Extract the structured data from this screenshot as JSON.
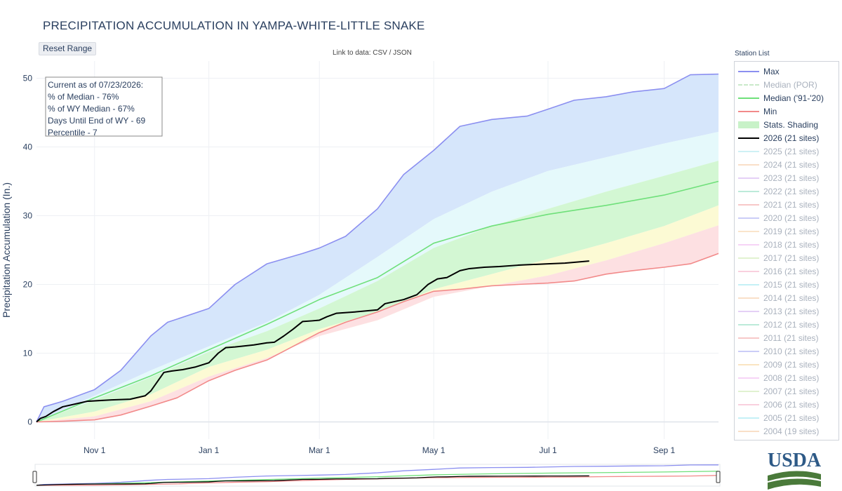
{
  "header": {
    "title": "PRECIPITATION ACCUMULATION IN YAMPA-WHITE-LITTLE SNAKE",
    "reset_label": "Reset Range",
    "link_prefix": "Link to data:",
    "link_csv": "CSV",
    "link_sep": "/",
    "link_json": "JSON"
  },
  "info_box": {
    "lines": [
      "Current as of 07/23/2026:",
      "% of Median - 76%",
      "% of WY Median - 67%",
      "Days Until End of WY - 69",
      "Percentile - 7"
    ]
  },
  "legend": {
    "title": "Station List",
    "items": [
      {
        "label": "Max",
        "color": "#8b8ff0",
        "style": "line",
        "active": true
      },
      {
        "label": "Median (POR)",
        "color": "#a6dca6",
        "style": "dash",
        "active": false
      },
      {
        "label": "Median ('91-'20)",
        "color": "#6fe07a",
        "style": "line",
        "active": true
      },
      {
        "label": "Min",
        "color": "#f28a8a",
        "style": "line",
        "active": true
      },
      {
        "label": "Stats. Shading",
        "color": "#c8f2c8",
        "style": "block",
        "active": true
      },
      {
        "label": "2026 (21 sites)",
        "color": "#000000",
        "style": "line",
        "active": true
      },
      {
        "label": "2025 (21 sites)",
        "color": "#aee8ee",
        "style": "line",
        "active": false
      },
      {
        "label": "2024 (21 sites)",
        "color": "#f5c9a3",
        "style": "line",
        "active": false
      },
      {
        "label": "2023 (21 sites)",
        "color": "#d4b0f0",
        "style": "line",
        "active": false
      },
      {
        "label": "2022 (21 sites)",
        "color": "#8fdcc0",
        "style": "line",
        "active": false
      },
      {
        "label": "2021 (21 sites)",
        "color": "#f2a3a3",
        "style": "line",
        "active": false
      },
      {
        "label": "2020 (21 sites)",
        "color": "#a9acf2",
        "style": "line",
        "active": false
      },
      {
        "label": "2019 (21 sites)",
        "color": "#f7d3a9",
        "style": "line",
        "active": false
      },
      {
        "label": "2018 (21 sites)",
        "color": "#f0b8f0",
        "style": "line",
        "active": false
      },
      {
        "label": "2017 (21 sites)",
        "color": "#cdeab0",
        "style": "line",
        "active": false
      },
      {
        "label": "2016 (21 sites)",
        "color": "#f5b0c8",
        "style": "line",
        "active": false
      },
      {
        "label": "2015 (21 sites)",
        "color": "#9fe6f0",
        "style": "line",
        "active": false
      },
      {
        "label": "2014 (21 sites)",
        "color": "#f5c9a3",
        "style": "line",
        "active": false
      },
      {
        "label": "2013 (21 sites)",
        "color": "#d4b0f0",
        "style": "line",
        "active": false
      },
      {
        "label": "2012 (21 sites)",
        "color": "#8fdcc0",
        "style": "line",
        "active": false
      },
      {
        "label": "2011 (21 sites)",
        "color": "#f2a3a3",
        "style": "line",
        "active": false
      },
      {
        "label": "2010 (21 sites)",
        "color": "#a9acf2",
        "style": "line",
        "active": false
      },
      {
        "label": "2009 (21 sites)",
        "color": "#f7d39a",
        "style": "line",
        "active": false
      },
      {
        "label": "2008 (21 sites)",
        "color": "#f0b8f0",
        "style": "line",
        "active": false
      },
      {
        "label": "2007 (21 sites)",
        "color": "#cdeab0",
        "style": "line",
        "active": false
      },
      {
        "label": "2006 (21 sites)",
        "color": "#f5b0c8",
        "style": "line",
        "active": false
      },
      {
        "label": "2005 (21 sites)",
        "color": "#9fe6f0",
        "style": "line",
        "active": false
      },
      {
        "label": "2004 (19 sites)",
        "color": "#f5c9a3",
        "style": "line",
        "active": false
      }
    ]
  },
  "logo_text": "USDA",
  "chart_data": {
    "type": "area",
    "x_unit": "date",
    "xlim": [
      "2025-10-01",
      "2026-09-30"
    ],
    "x_ticks": [
      {
        "date": "2025-11-01",
        "label": "Nov 1"
      },
      {
        "date": "2026-01-01",
        "label": "Jan 1"
      },
      {
        "date": "2026-03-01",
        "label": "Mar 1"
      },
      {
        "date": "2026-05-01",
        "label": "May 1"
      },
      {
        "date": "2026-07-01",
        "label": "Jul 1"
      },
      {
        "date": "2026-09-01",
        "label": "Sep 1"
      }
    ],
    "ylabel": "Precipitation Accumulation (In.)",
    "ylim": [
      -2.5,
      52.5
    ],
    "y_ticks": [
      0,
      10,
      20,
      30,
      40,
      50
    ],
    "grid": true,
    "legend_position": "right",
    "colors": {
      "max_line": "#8b8ff0",
      "median_line": "#6fe07a",
      "min_line": "#f28a8a",
      "current_line": "#000000",
      "band_top": "#d6e6fb",
      "band_upper": "#e5f9fb",
      "band_mid": "#d3f7d3",
      "band_lower": "#fcfad4",
      "band_bottom": "#fde0e2"
    },
    "bands_x": [
      "2025-10-01",
      "2025-11-01",
      "2025-12-01",
      "2026-01-01",
      "2026-02-01",
      "2026-03-01",
      "2026-04-01",
      "2026-05-01",
      "2026-06-01",
      "2026-07-01",
      "2026-08-01",
      "2026-09-01",
      "2026-09-30"
    ],
    "bands": {
      "p90": [
        0,
        3.8,
        7.5,
        11.0,
        14.5,
        18.5,
        24.0,
        29.5,
        33.5,
        36.5,
        38.5,
        40.5,
        42.2
      ],
      "p70": [
        0,
        3.2,
        6.5,
        10.2,
        13.2,
        16.5,
        20.5,
        25.3,
        28.5,
        31.0,
        33.5,
        35.8,
        38.0
      ],
      "p30": [
        0,
        1.5,
        4.0,
        8.0,
        10.5,
        13.5,
        16.0,
        19.3,
        21.5,
        23.7,
        26.0,
        28.5,
        31.5
      ],
      "p10": [
        0,
        0.8,
        3.0,
        6.6,
        9.3,
        12.5,
        14.8,
        18.2,
        19.8,
        21.3,
        23.5,
        26.0,
        28.6
      ]
    },
    "series": [
      {
        "name": "Max",
        "x": [
          "2025-10-01",
          "2025-10-05",
          "2025-10-15",
          "2025-11-01",
          "2025-11-15",
          "2025-12-01",
          "2025-12-10",
          "2026-01-01",
          "2026-01-15",
          "2026-02-01",
          "2026-02-20",
          "2026-03-01",
          "2026-03-15",
          "2026-04-01",
          "2026-04-15",
          "2026-05-01",
          "2026-05-15",
          "2026-06-01",
          "2026-06-20",
          "2026-07-01",
          "2026-07-15",
          "2026-08-01",
          "2026-08-15",
          "2026-09-01",
          "2026-09-15",
          "2026-09-30"
        ],
        "y": [
          0,
          2.2,
          3.0,
          4.7,
          7.5,
          12.5,
          14.5,
          16.5,
          20.0,
          23.0,
          24.5,
          25.3,
          27.0,
          31.0,
          36.0,
          39.5,
          43.0,
          44.0,
          44.5,
          45.5,
          46.8,
          47.3,
          48.0,
          48.5,
          50.5,
          50.6
        ]
      },
      {
        "name": "Median ('91-'20)",
        "x": [
          "2025-10-01",
          "2025-11-01",
          "2025-12-01",
          "2026-01-01",
          "2026-02-01",
          "2026-03-01",
          "2026-04-01",
          "2026-05-01",
          "2026-06-01",
          "2026-07-01",
          "2026-08-01",
          "2026-09-01",
          "2026-09-30"
        ],
        "y": [
          0,
          3.5,
          6.7,
          10.5,
          14.2,
          17.8,
          21.0,
          26.0,
          28.5,
          30.2,
          31.5,
          33.0,
          35.0
        ]
      },
      {
        "name": "Min",
        "x": [
          "2025-10-01",
          "2025-10-15",
          "2025-11-01",
          "2025-11-15",
          "2025-12-01",
          "2025-12-15",
          "2026-01-01",
          "2026-01-15",
          "2026-02-01",
          "2026-02-15",
          "2026-03-01",
          "2026-03-15",
          "2026-04-01",
          "2026-04-15",
          "2026-05-01",
          "2026-05-15",
          "2026-06-01",
          "2026-06-15",
          "2026-07-01",
          "2026-07-15",
          "2026-08-01",
          "2026-08-15",
          "2026-09-01",
          "2026-09-15",
          "2026-09-30"
        ],
        "y": [
          0,
          0.1,
          0.3,
          1.0,
          2.3,
          3.5,
          6.0,
          7.5,
          9.0,
          11.0,
          13.0,
          14.5,
          16.0,
          17.5,
          19.0,
          19.3,
          19.8,
          20.0,
          20.2,
          20.5,
          21.5,
          22.0,
          22.5,
          23.0,
          24.5
        ]
      },
      {
        "name": "2026 (21 sites)",
        "x": [
          "2025-10-01",
          "2025-10-03",
          "2025-10-06",
          "2025-10-10",
          "2025-10-15",
          "2025-10-20",
          "2025-10-28",
          "2025-11-10",
          "2025-11-20",
          "2025-11-28",
          "2025-12-01",
          "2025-12-08",
          "2025-12-12",
          "2025-12-18",
          "2025-12-25",
          "2026-01-01",
          "2026-01-06",
          "2026-01-10",
          "2026-01-15",
          "2026-01-25",
          "2026-02-01",
          "2026-02-05",
          "2026-02-10",
          "2026-02-15",
          "2026-02-20",
          "2026-02-25",
          "2026-03-01",
          "2026-03-05",
          "2026-03-10",
          "2026-03-20",
          "2026-04-01",
          "2026-04-05",
          "2026-04-15",
          "2026-04-22",
          "2026-04-28",
          "2026-05-03",
          "2026-05-08",
          "2026-05-15",
          "2026-05-20",
          "2026-05-28",
          "2026-06-05",
          "2026-06-15",
          "2026-07-01",
          "2026-07-10",
          "2026-07-23"
        ],
        "y": [
          0,
          0.5,
          0.8,
          1.5,
          2.2,
          2.5,
          3.0,
          3.2,
          3.3,
          3.8,
          4.5,
          7.2,
          7.4,
          7.6,
          8.0,
          8.6,
          10.0,
          10.8,
          10.9,
          11.2,
          11.5,
          11.6,
          12.5,
          13.5,
          14.6,
          14.7,
          14.8,
          15.3,
          15.8,
          16.0,
          16.3,
          17.2,
          17.8,
          18.5,
          20.0,
          20.8,
          21.0,
          22.0,
          22.3,
          22.5,
          22.6,
          22.8,
          23.0,
          23.1,
          23.4
        ]
      }
    ],
    "range_slider": true
  }
}
